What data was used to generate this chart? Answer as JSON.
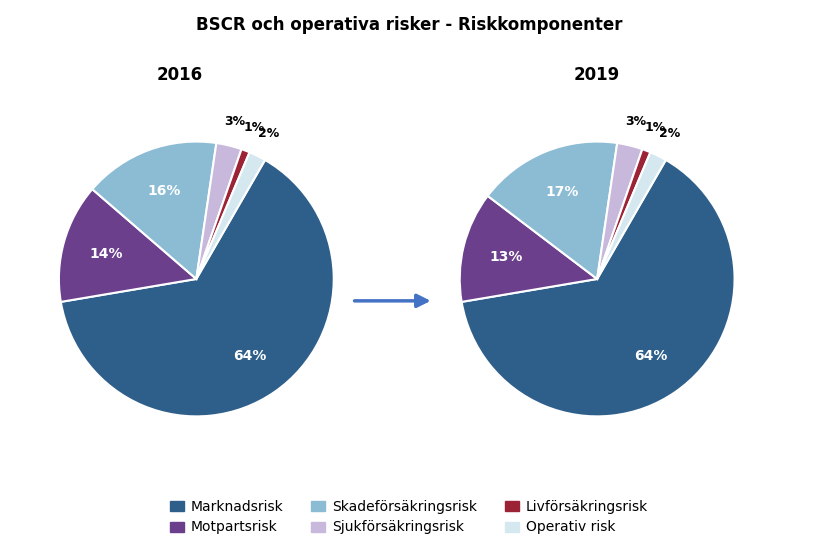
{
  "title": "BSCR och operativa risker - Riskkomponenter",
  "year_left": "2016",
  "year_right": "2019",
  "labels": [
    "Marknadsrisk",
    "Motpartsrisk",
    "Skadeförsäkringsrisk",
    "Sjukförsäkringsrisk",
    "Livförsäkringsrisk",
    "Operativ risk"
  ],
  "colors": [
    "#2E5F8A",
    "#6B3F8C",
    "#8BBCD4",
    "#C8B8DC",
    "#9B2335",
    "#D5E8F0"
  ],
  "slices_2016": [
    64,
    14,
    16,
    3,
    1,
    2
  ],
  "slices_2019": [
    64,
    13,
    17,
    3,
    1,
    2
  ],
  "startangle": 108,
  "background_color": "#FFFFFF",
  "title_fontsize": 12,
  "year_fontsize": 12,
  "pct_fontsize": 10,
  "legend_fontsize": 10,
  "arrow_color": "#4472C4"
}
